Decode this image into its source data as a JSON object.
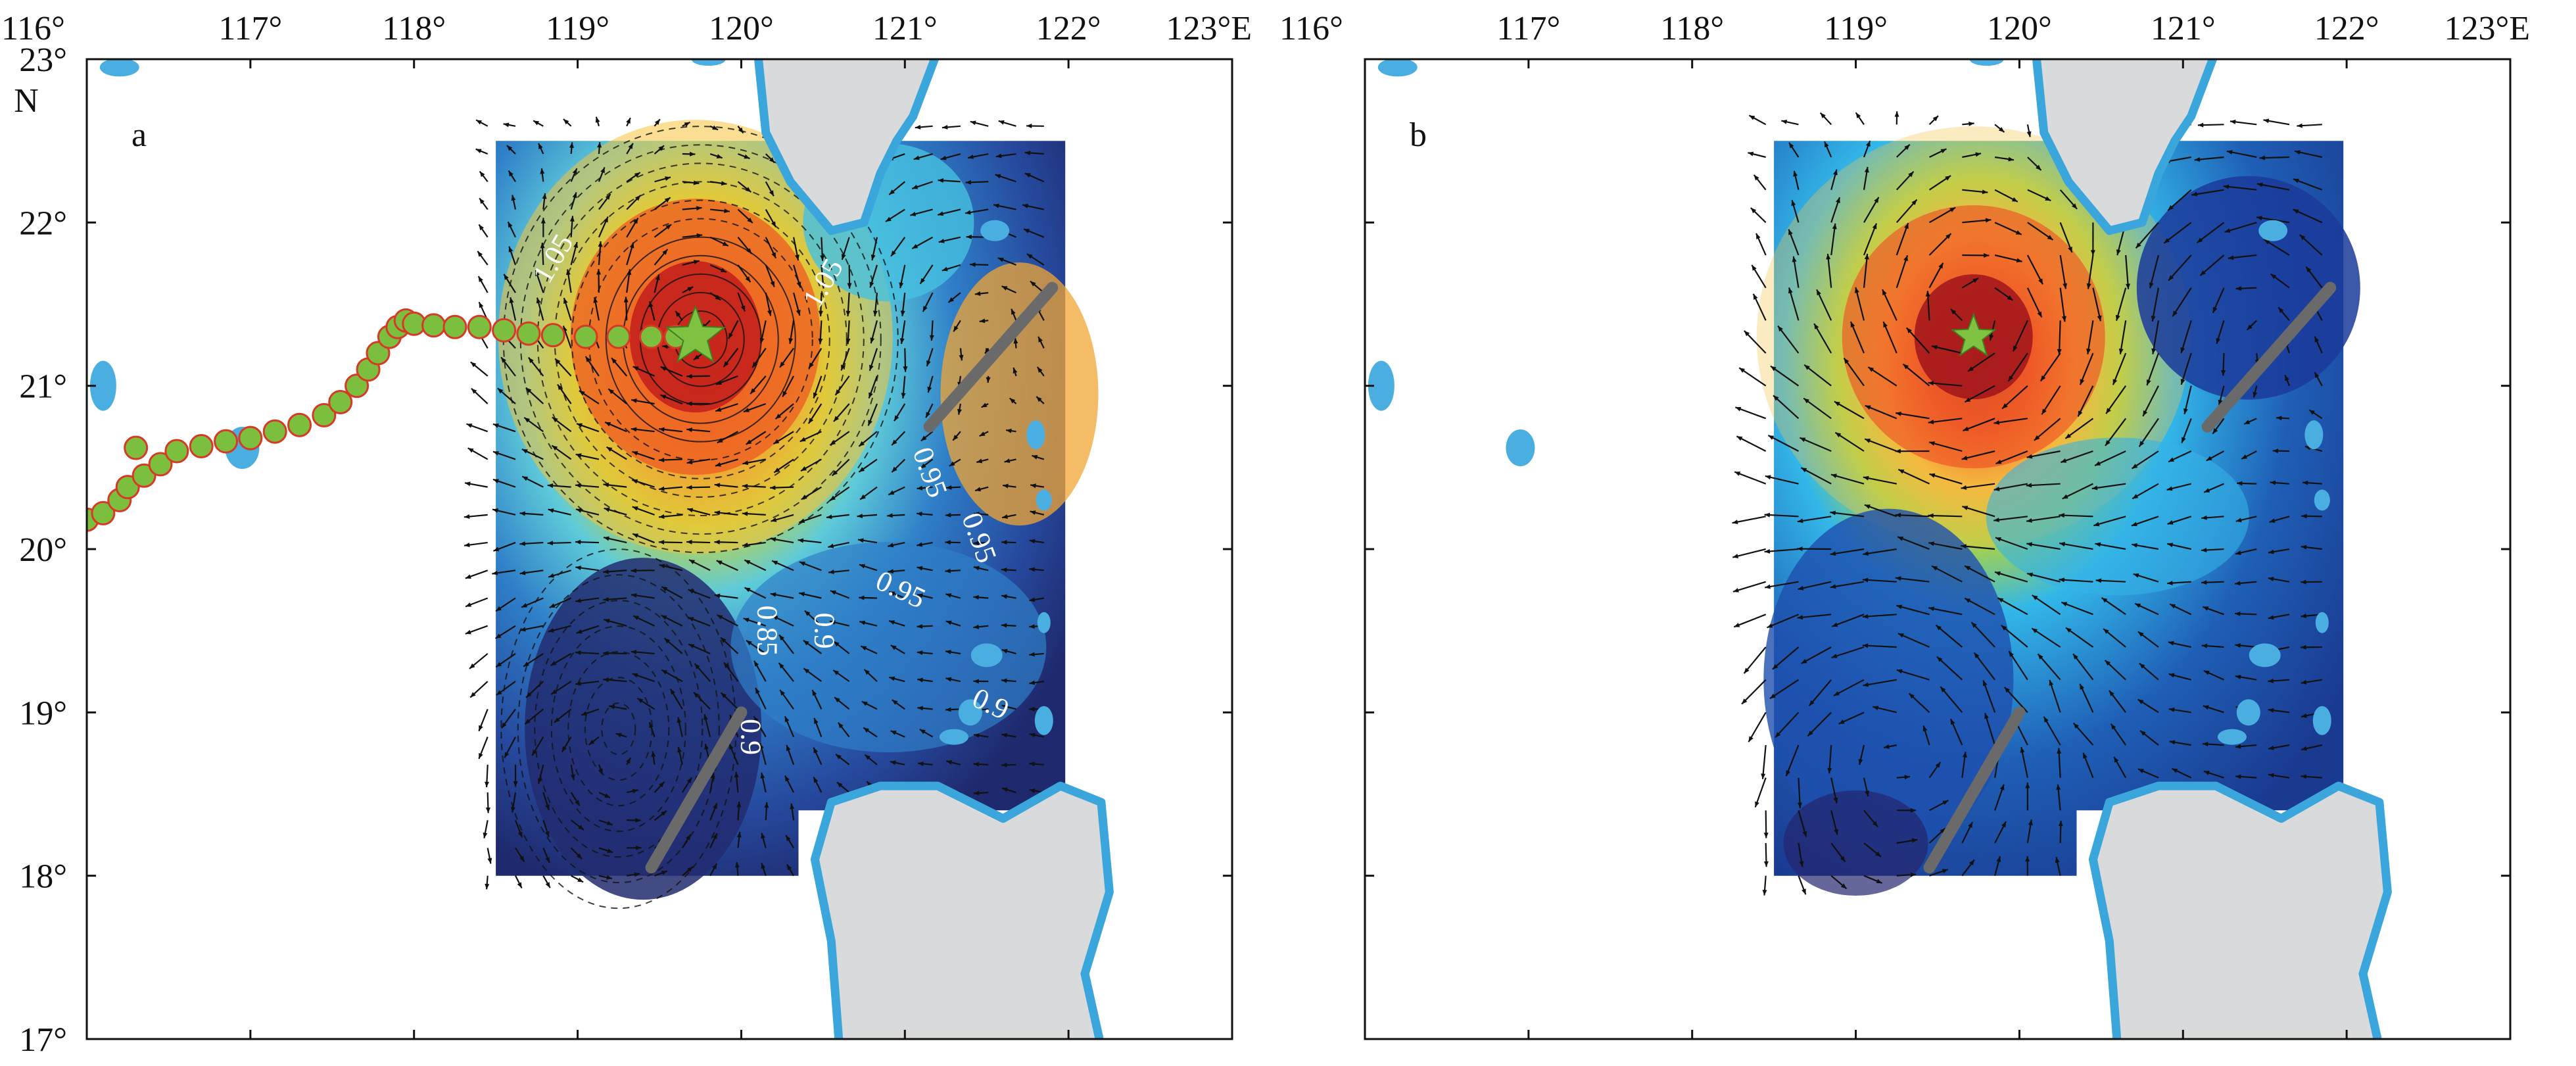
{
  "colors": {
    "land": "#d9dadb",
    "coast": "#3aa6dc",
    "island": "#4aaee0",
    "arrow": "#111111",
    "track_fill": "#7cbf3f",
    "track_edge": "#d63a26",
    "star": "#7fc241",
    "section_line": "#6a6a6a"
  },
  "axes": {
    "x_ticks": [
      "116°",
      "117°",
      "118°",
      "119°",
      "120°",
      "121°",
      "122°",
      "123°E"
    ],
    "y_ticks": [
      "23°",
      "22°",
      "21°",
      "20°",
      "19°",
      "18°",
      "17°"
    ],
    "y_unit": "N",
    "x_range": [
      116,
      123
    ],
    "y_range": [
      17,
      23
    ]
  },
  "panels": [
    {
      "label": "a",
      "contour_labels": [
        {
          "text": "1.05",
          "lon": 118.9,
          "lat": 21.75,
          "angle": -60
        },
        {
          "text": "1.05",
          "lon": 120.55,
          "lat": 21.6,
          "angle": -60
        },
        {
          "text": "0.95",
          "lon": 121.1,
          "lat": 20.45,
          "angle": 70
        },
        {
          "text": "0.95",
          "lon": 121.4,
          "lat": 20.05,
          "angle": 70
        },
        {
          "text": "0.95",
          "lon": 120.95,
          "lat": 19.7,
          "angle": 25
        },
        {
          "text": "0.9",
          "lon": 120.45,
          "lat": 19.5,
          "angle": 90
        },
        {
          "text": "0.85",
          "lon": 120.1,
          "lat": 19.5,
          "angle": 90
        },
        {
          "text": "0.9",
          "lon": 121.5,
          "lat": 19.0,
          "angle": 25
        },
        {
          "text": "0.9",
          "lon": 120.0,
          "lat": 18.85,
          "angle": 90
        }
      ],
      "has_track": true
    },
    {
      "label": "b",
      "contour_labels": [],
      "has_track": false
    }
  ],
  "eddy_center": {
    "lon": 119.72,
    "lat": 21.3
  },
  "track": {
    "lon": [
      116.0,
      116.1,
      116.2,
      116.25,
      116.35,
      116.45,
      116.55,
      116.7,
      116.85,
      117.0,
      117.15,
      117.3,
      117.45,
      117.55,
      117.65,
      117.72,
      117.78,
      117.85,
      117.9,
      117.95,
      118.0,
      118.12,
      118.25,
      118.4,
      118.55,
      118.7,
      118.85,
      119.05,
      119.25,
      119.45,
      119.6,
      116.3
    ],
    "lat": [
      20.18,
      20.22,
      20.3,
      20.38,
      20.45,
      20.52,
      20.6,
      20.63,
      20.66,
      20.68,
      20.72,
      20.76,
      20.82,
      20.9,
      21.0,
      21.1,
      21.2,
      21.3,
      21.36,
      21.4,
      21.38,
      21.37,
      21.36,
      21.36,
      21.34,
      21.32,
      21.31,
      21.3,
      21.3,
      21.3,
      21.3,
      20.62
    ]
  },
  "sections": [
    {
      "lon1": 119.45,
      "lat1": 18.05,
      "lon2": 120.0,
      "lat2": 19.0
    },
    {
      "lon1": 121.15,
      "lat1": 20.75,
      "lon2": 121.9,
      "lat2": 21.6
    }
  ]
}
